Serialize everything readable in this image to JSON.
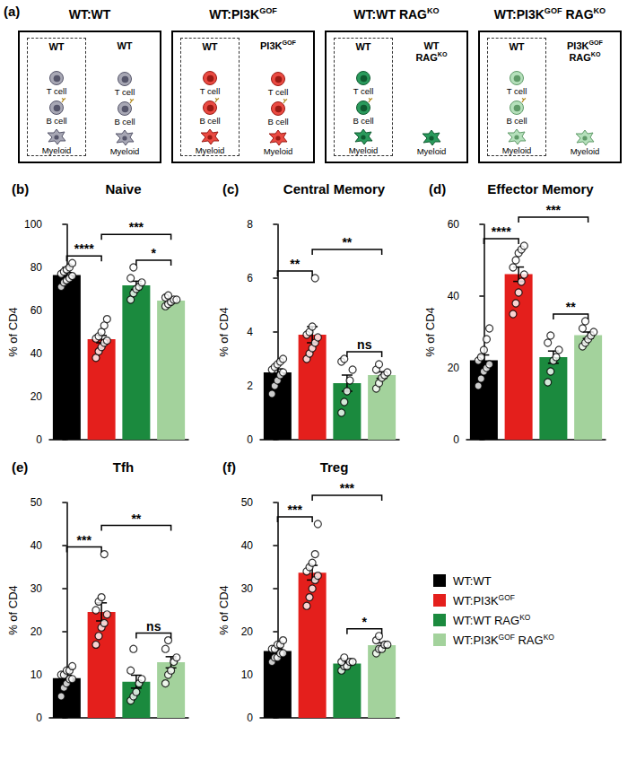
{
  "panel_a": {
    "letter": "(a)",
    "boxes": [
      {
        "title": {
          "text": "WT:WT",
          "sup": []
        },
        "left": {
          "header": [
            "WT"
          ],
          "cells": [
            "T cell",
            "B cell",
            "Myeloid"
          ]
        },
        "right": {
          "header": [
            "WT"
          ],
          "cells": [
            "T cell",
            "B cell",
            "Myeloid"
          ]
        }
      },
      {
        "title": {
          "text": "WT:PI3KGOF",
          "sup": [
            "GOF"
          ]
        },
        "left": {
          "header": [
            "WT"
          ],
          "cells": [
            "T cell",
            "B cell",
            "Myeloid"
          ]
        },
        "right": {
          "header": [
            {
              "text": "PI3KGOF",
              "sup": [
                "GOF"
              ]
            }
          ],
          "cells": [
            "T cell",
            "B cell",
            "Myeloid"
          ]
        }
      },
      {
        "title": {
          "text": "WT:WT RAGKO",
          "sup": [
            "KO"
          ]
        },
        "left": {
          "header": [
            "WT"
          ],
          "cells": [
            "T cell",
            "B cell",
            "Myeloid"
          ]
        },
        "right": {
          "header": [
            "WT",
            {
              "text": "RAGKO",
              "sup": [
                "KO"
              ]
            }
          ],
          "cells": [
            "Myeloid"
          ]
        }
      },
      {
        "title": {
          "text": "WT:PI3KGOF RAGKO",
          "sup": [
            "GOF",
            "KO"
          ]
        },
        "left": {
          "header": [
            "WT"
          ],
          "cells": [
            "T cell",
            "B cell",
            "Myeloid"
          ]
        },
        "right": {
          "header": [
            {
              "text": "PI3KGOF",
              "sup": [
                "GOF"
              ]
            },
            {
              "text": "RAGKO",
              "sup": [
                "KO"
              ]
            }
          ],
          "cells": [
            "Myeloid"
          ]
        }
      }
    ]
  },
  "chart_data": [
    {
      "letter": "(b)",
      "type": "bar",
      "title": "Naive",
      "ylabel": "% of CD4",
      "categories": [
        "WT:WT",
        "WT:PI3KGOF",
        "WT:WT RAGKO",
        "WT:PI3KGOF RAGKO"
      ],
      "category_sup": [
        [],
        [
          "GOF"
        ],
        [
          "KO"
        ],
        [
          "GOF",
          "KO"
        ]
      ],
      "colors": [
        "#000000",
        "#e41f1c",
        "#1b8a3e",
        "#a3d29c"
      ],
      "values": [
        76.5,
        46.7,
        71.7,
        64.6
      ],
      "errors": [
        1.1,
        1.7,
        1.9,
        0.7
      ],
      "points": [
        [
          71,
          73,
          74,
          75,
          76,
          77,
          78,
          79,
          80,
          82
        ],
        [
          38,
          41,
          43,
          45,
          46,
          47,
          48,
          50,
          53,
          56
        ],
        [
          65,
          68,
          70,
          71,
          73,
          75,
          80
        ],
        [
          62,
          63,
          64,
          65,
          65,
          66,
          67
        ]
      ],
      "comparisons": [
        {
          "groups": [
            0,
            1
          ],
          "label": "****"
        },
        {
          "groups": [
            2,
            3
          ],
          "label": "*"
        },
        {
          "groups": [
            1,
            3
          ],
          "label": "***"
        }
      ],
      "ylim": [
        0,
        100
      ],
      "yticks": [
        0,
        20,
        40,
        60,
        80,
        100
      ],
      "grid": false,
      "tick_labels": "y"
    },
    {
      "letter": "(c)",
      "type": "bar",
      "title": "Central Memory",
      "ylabel": "% of CD4",
      "categories": [
        "WT:WT",
        "WT:PI3KGOF",
        "WT:WT RAGKO",
        "WT:PI3KGOF RAGKO"
      ],
      "category_sup": [
        [],
        [
          "GOF"
        ],
        [
          "KO"
        ],
        [
          "GOF",
          "KO"
        ]
      ],
      "colors": [
        "#000000",
        "#e41f1c",
        "#1b8a3e",
        "#a3d29c"
      ],
      "values": [
        2.5,
        3.9,
        2.1,
        2.4
      ],
      "errors": [
        0.13,
        0.3,
        0.3,
        0.12
      ],
      "points": [
        [
          1.7,
          2.0,
          2.2,
          2.4,
          2.5,
          2.6,
          2.7,
          2.8,
          2.9,
          3.0
        ],
        [
          3.0,
          3.2,
          3.4,
          3.6,
          3.8,
          3.9,
          4.0,
          4.2,
          6.0
        ],
        [
          1.0,
          1.4,
          1.8,
          2.2,
          2.6,
          2.9,
          3.0
        ],
        [
          1.9,
          2.1,
          2.3,
          2.4,
          2.5,
          2.6,
          2.8
        ]
      ],
      "comparisons": [
        {
          "groups": [
            0,
            1
          ],
          "label": "**"
        },
        {
          "groups": [
            2,
            3
          ],
          "label": "ns"
        },
        {
          "groups": [
            1,
            3
          ],
          "label": "**"
        }
      ],
      "ylim": [
        0,
        8
      ],
      "yticks": [
        0,
        2,
        4,
        6,
        8
      ],
      "grid": false,
      "tick_labels": "y"
    },
    {
      "letter": "(d)",
      "type": "bar",
      "title": "Effector Memory",
      "ylabel": "% of CD4",
      "categories": [
        "WT:WT",
        "WT:PI3KGOF",
        "WT:WT RAGKO",
        "WT:PI3KGOF RAGKO"
      ],
      "category_sup": [
        [],
        [
          "GOF"
        ],
        [
          "KO"
        ],
        [
          "GOF",
          "KO"
        ]
      ],
      "colors": [
        "#000000",
        "#e41f1c",
        "#1b8a3e",
        "#a3d29c"
      ],
      "values": [
        22.1,
        46.1,
        23.0,
        29.1
      ],
      "errors": [
        1.5,
        2.0,
        1.7,
        0.9
      ],
      "points": [
        [
          15,
          17,
          19,
          20,
          21,
          22,
          23,
          25,
          28,
          31
        ],
        [
          35,
          38,
          41,
          44,
          46,
          48,
          50,
          52,
          53,
          54
        ],
        [
          16,
          19,
          22,
          23,
          25,
          27,
          29
        ],
        [
          26,
          27,
          28,
          29,
          30,
          31,
          33
        ]
      ],
      "comparisons": [
        {
          "groups": [
            0,
            1
          ],
          "label": "****"
        },
        {
          "groups": [
            2,
            3
          ],
          "label": "**"
        },
        {
          "groups": [
            1,
            3
          ],
          "label": "***"
        }
      ],
      "ylim": [
        0,
        60
      ],
      "yticks": [
        0,
        20,
        40,
        60
      ],
      "grid": false,
      "tick_labels": "y"
    },
    {
      "letter": "(e)",
      "type": "bar",
      "title": "Tfh",
      "ylabel": "% of CD4",
      "categories": [
        "WT:WT",
        "WT:PI3KGOF",
        "WT:WT RAGKO",
        "WT:PI3KGOF RAGKO"
      ],
      "category_sup": [
        [],
        [
          "GOF"
        ],
        [
          "KO"
        ],
        [
          "GOF",
          "KO"
        ]
      ],
      "colors": [
        "#000000",
        "#e41f1c",
        "#1b8a3e",
        "#a3d29c"
      ],
      "values": [
        9.2,
        24.6,
        8.4,
        12.9
      ],
      "errors": [
        0.7,
        2.1,
        1.5,
        1.3
      ],
      "points": [
        [
          5,
          7,
          8,
          9,
          9,
          10,
          10,
          11,
          11,
          12
        ],
        [
          17,
          19,
          21,
          22,
          24,
          25,
          27,
          28,
          38
        ],
        [
          4,
          5,
          6,
          8,
          9,
          11,
          16
        ],
        [
          8,
          10,
          11,
          13,
          14,
          16,
          18
        ]
      ],
      "comparisons": [
        {
          "groups": [
            0,
            1
          ],
          "label": "***"
        },
        {
          "groups": [
            2,
            3
          ],
          "label": "ns"
        },
        {
          "groups": [
            1,
            3
          ],
          "label": "**"
        }
      ],
      "ylim": [
        0,
        50
      ],
      "yticks": [
        0,
        10,
        20,
        30,
        40,
        50
      ],
      "grid": false,
      "tick_labels": "y"
    },
    {
      "letter": "(f)",
      "type": "bar",
      "title": "Treg",
      "ylabel": "% of CD4",
      "categories": [
        "WT:WT",
        "WT:PI3KGOF",
        "WT:WT RAGKO",
        "WT:PI3KGOF RAGKO"
      ],
      "category_sup": [
        [],
        [
          "GOF"
        ],
        [
          "KO"
        ],
        [
          "GOF",
          "KO"
        ]
      ],
      "colors": [
        "#000000",
        "#e41f1c",
        "#1b8a3e",
        "#a3d29c"
      ],
      "values": [
        15.5,
        33.7,
        12.6,
        16.9
      ],
      "errors": [
        0.5,
        1.7,
        0.4,
        0.5
      ],
      "points": [
        [
          13,
          14,
          14,
          15,
          15,
          16,
          16,
          17,
          17,
          18
        ],
        [
          26,
          28,
          30,
          32,
          33,
          34,
          35,
          36,
          38,
          45
        ],
        [
          11,
          12,
          12,
          13,
          13,
          13,
          14
        ],
        [
          15,
          16,
          16,
          17,
          17,
          18,
          19
        ]
      ],
      "comparisons": [
        {
          "groups": [
            0,
            1
          ],
          "label": "***"
        },
        {
          "groups": [
            2,
            3
          ],
          "label": "*"
        },
        {
          "groups": [
            1,
            3
          ],
          "label": "***"
        }
      ],
      "ylim": [
        0,
        50
      ],
      "yticks": [
        0,
        10,
        20,
        30,
        40,
        50
      ],
      "grid": false,
      "tick_labels": "y",
      "legend": "right"
    }
  ]
}
